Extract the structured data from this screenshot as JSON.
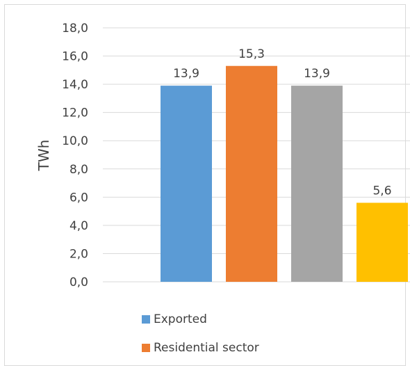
{
  "chart_data": {
    "type": "bar",
    "categories": [
      "Exported",
      "Residential sector",
      "",
      ""
    ],
    "values": [
      13.9,
      15.3,
      13.9,
      5.6
    ],
    "data_labels": [
      "13,9",
      "15,3",
      "13,9",
      "5,6"
    ],
    "colors": [
      "#5b9bd5",
      "#ed7d31",
      "#a5a5a5",
      "#ffc000"
    ],
    "ylabel": "TWh",
    "ylim": [
      0,
      18
    ],
    "yticks": [
      0,
      2,
      4,
      6,
      8,
      10,
      12,
      14,
      16,
      18
    ],
    "ytick_labels": [
      "0,0",
      "2,0",
      "4,0",
      "6,0",
      "8,0",
      "10,0",
      "12,0",
      "14,0",
      "16,0",
      "18,0"
    ],
    "grid": true,
    "legend": {
      "placement": "bottom",
      "entries": [
        {
          "label": "Exported",
          "color": "#5b9bd5"
        },
        {
          "label": "Residential sector",
          "color": "#ed7d31"
        }
      ]
    }
  }
}
